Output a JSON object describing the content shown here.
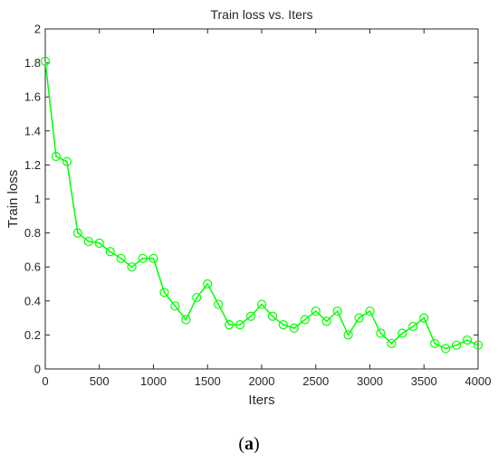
{
  "chart_data": {
    "type": "line",
    "title": "Train loss vs. Iters",
    "xlabel": "Iters",
    "ylabel": "Train loss",
    "xlim": [
      0,
      4000
    ],
    "ylim": [
      0,
      2
    ],
    "xticks": [
      "0",
      "500",
      "1000",
      "1500",
      "2000",
      "2500",
      "3000",
      "3500",
      "4000"
    ],
    "yticks": [
      "0",
      "0.2",
      "0.4",
      "0.6",
      "0.8",
      "1",
      "1.2",
      "1.4",
      "1.6",
      "1.8",
      "2"
    ],
    "grid": false,
    "line_color": "#00ff00",
    "marker": "circle",
    "x": [
      0,
      100,
      200,
      300,
      400,
      500,
      600,
      700,
      800,
      900,
      1000,
      1100,
      1200,
      1300,
      1400,
      1500,
      1600,
      1700,
      1800,
      1900,
      2000,
      2100,
      2200,
      2300,
      2400,
      2500,
      2600,
      2700,
      2800,
      2900,
      3000,
      3100,
      3200,
      3300,
      3400,
      3500,
      3600,
      3700,
      3800,
      3900,
      4000
    ],
    "y": [
      1.81,
      1.25,
      1.22,
      0.8,
      0.75,
      0.74,
      0.69,
      0.65,
      0.6,
      0.65,
      0.65,
      0.45,
      0.37,
      0.29,
      0.42,
      0.5,
      0.38,
      0.26,
      0.26,
      0.31,
      0.38,
      0.31,
      0.26,
      0.24,
      0.29,
      0.34,
      0.28,
      0.34,
      0.2,
      0.3,
      0.34,
      0.21,
      0.15,
      0.21,
      0.25,
      0.3,
      0.15,
      0.12,
      0.14,
      0.17,
      0.14
    ]
  },
  "caption": {
    "open": "(",
    "letter": "a",
    "close": ")"
  }
}
